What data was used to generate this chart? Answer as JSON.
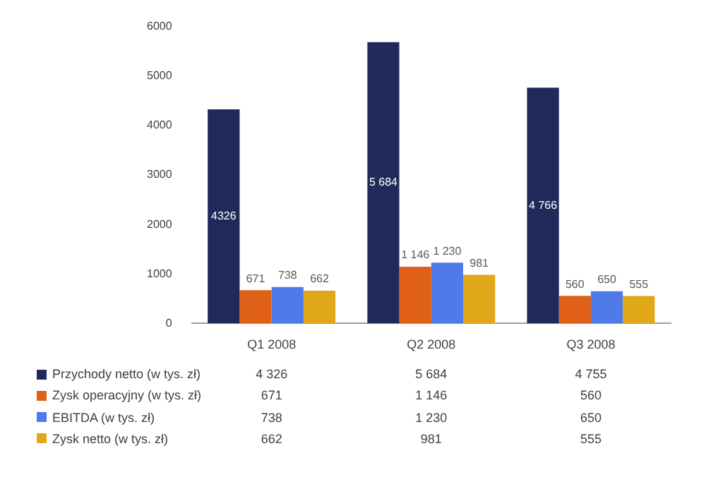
{
  "chart_data": {
    "type": "bar",
    "categories": [
      "Q1 2008",
      "Q2 2008",
      "Q3 2008"
    ],
    "series": [
      {
        "name": "Przychody netto (w tys. zł)",
        "color": "#1f2a5a",
        "values": [
          4326,
          5684,
          4766
        ],
        "value_labels": [
          "4326",
          "5 684",
          "4 766"
        ]
      },
      {
        "name": "Zysk operacyjny (w tys. zł)",
        "color": "#e06018",
        "values": [
          671,
          1146,
          560
        ],
        "value_labels": [
          "671",
          "1 146",
          "560"
        ]
      },
      {
        "name": "EBITDA (w tys. zł)",
        "color": "#4f7be8",
        "values": [
          738,
          1230,
          650
        ],
        "value_labels": [
          "738",
          "1 230",
          "650"
        ]
      },
      {
        "name": "Zysk netto (w tys. zł)",
        "color": "#e0a818",
        "values": [
          662,
          981,
          555
        ],
        "value_labels": [
          "662",
          "981",
          "555"
        ]
      }
    ],
    "ylim": [
      0,
      6000
    ],
    "yticks": [
      0,
      1000,
      2000,
      3000,
      4000,
      5000,
      6000
    ],
    "grid": false,
    "legend": "bottom left",
    "annotations": [
      "4 326",
      "5 684",
      "4 755",
      "671",
      "1 146",
      "560",
      "738",
      "1 230",
      "650",
      "662",
      "981",
      "555"
    ]
  }
}
